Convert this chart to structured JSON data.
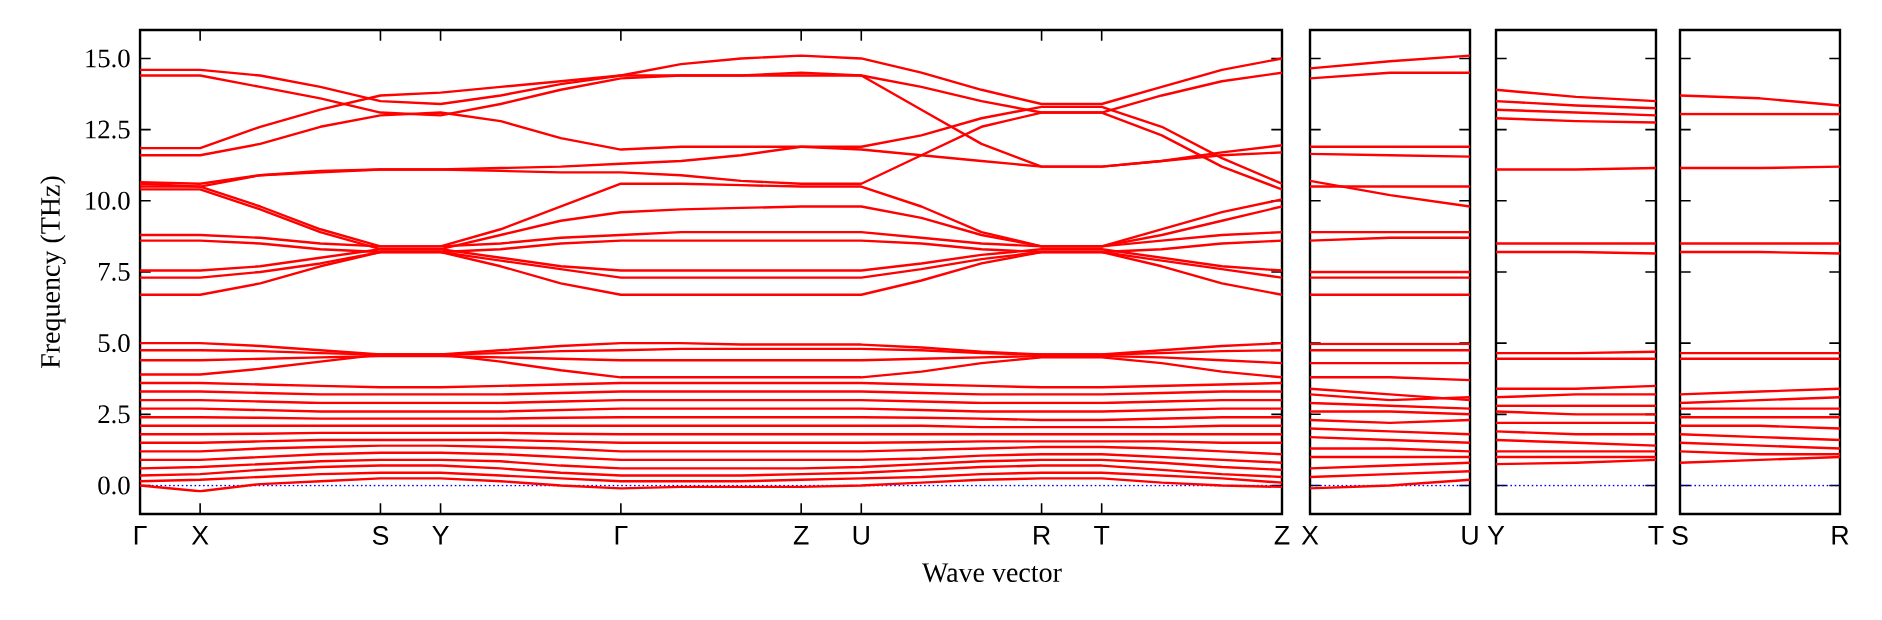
{
  "chart_data": [
    {
      "type": "line",
      "xlabel": "Wave vector",
      "ylabel": "Frequency (THz)",
      "color": "#ff0000",
      "categories": [
        "Γ",
        "X",
        null,
        null,
        "S",
        "Y",
        null,
        null,
        "Γ",
        null,
        null,
        "Z",
        "U",
        null,
        null,
        "R",
        "T",
        null,
        null,
        "Z"
      ],
      "ylim": [
        -1,
        16
      ],
      "yticks": [
        {
          "value": 0,
          "label": "0.0"
        },
        {
          "value": 2.5,
          "label": "2.5"
        },
        {
          "value": 5,
          "label": "5.0"
        },
        {
          "value": 7.5,
          "label": "7.5"
        },
        {
          "value": 10,
          "label": "10.0"
        },
        {
          "value": 12.5,
          "label": "12.5"
        },
        {
          "value": 15,
          "label": "15.0"
        }
      ],
      "ref_lines": [
        {
          "axis": "y",
          "value": 0,
          "color": "#0000ff",
          "line_style": "dotted"
        }
      ],
      "series": [
        {
          "values": [
            14.6,
            14.6,
            14.4,
            14.0,
            13.5,
            13.4,
            13.7,
            14.1,
            14.4,
            14.8,
            15.0,
            15.1,
            15.0,
            14.5,
            13.9,
            13.4,
            13.4,
            14.0,
            14.6,
            15.0
          ]
        },
        {
          "values": [
            14.4,
            14.4,
            14.0,
            13.6,
            13.1,
            13.0,
            13.4,
            13.9,
            14.3,
            14.4,
            14.4,
            14.5,
            14.4,
            14.0,
            13.5,
            13.1,
            13.1,
            13.7,
            14.2,
            14.5
          ]
        },
        {
          "values": [
            11.85,
            11.85,
            12.6,
            13.2,
            13.7,
            13.8,
            14.0,
            14.2,
            14.4,
            14.4,
            14.4,
            14.4,
            14.4,
            13.2,
            12.0,
            11.2,
            11.2,
            11.4,
            11.7,
            11.95
          ]
        },
        {
          "values": [
            11.6,
            11.6,
            12.0,
            12.6,
            13.0,
            13.1,
            12.8,
            12.2,
            11.8,
            11.9,
            11.9,
            11.9,
            11.8,
            11.6,
            11.4,
            11.2,
            11.2,
            11.4,
            11.6,
            11.7
          ]
        },
        {
          "values": [
            10.65,
            10.6,
            10.9,
            11.05,
            11.1,
            11.1,
            11.15,
            11.2,
            11.3,
            11.4,
            11.6,
            11.9,
            11.9,
            12.3,
            12.9,
            13.3,
            13.3,
            12.6,
            11.5,
            10.6
          ]
        },
        {
          "values": [
            10.5,
            10.5,
            10.9,
            11.0,
            11.1,
            11.1,
            11.05,
            11.0,
            11.0,
            10.9,
            10.7,
            10.6,
            10.6,
            11.6,
            12.6,
            13.1,
            13.1,
            12.3,
            11.2,
            10.4
          ]
        },
        {
          "values": [
            10.6,
            10.5,
            9.8,
            9.0,
            8.4,
            8.4,
            9.0,
            9.8,
            10.6,
            10.6,
            10.55,
            10.5,
            10.5,
            9.8,
            8.9,
            8.4,
            8.4,
            8.8,
            9.3,
            9.8
          ]
        },
        {
          "values": [
            10.4,
            10.4,
            9.7,
            8.9,
            8.3,
            8.3,
            8.8,
            9.3,
            9.6,
            9.7,
            9.75,
            9.8,
            9.8,
            9.4,
            8.8,
            8.4,
            8.4,
            9.0,
            9.6,
            10.05
          ]
        },
        {
          "values": [
            8.8,
            8.8,
            8.7,
            8.5,
            8.4,
            8.4,
            8.5,
            8.7,
            8.8,
            8.9,
            8.9,
            8.9,
            8.9,
            8.7,
            8.5,
            8.4,
            8.4,
            8.6,
            8.8,
            8.9
          ]
        },
        {
          "values": [
            8.6,
            8.6,
            8.5,
            8.3,
            8.2,
            8.2,
            8.3,
            8.5,
            8.6,
            8.6,
            8.6,
            8.6,
            8.6,
            8.5,
            8.3,
            8.2,
            8.2,
            8.3,
            8.5,
            8.6
          ]
        },
        {
          "values": [
            7.55,
            7.55,
            7.7,
            8.0,
            8.3,
            8.3,
            8.0,
            7.7,
            7.55,
            7.55,
            7.55,
            7.55,
            7.55,
            7.8,
            8.1,
            8.3,
            8.3,
            8.0,
            7.7,
            7.55
          ]
        },
        {
          "values": [
            7.3,
            7.3,
            7.5,
            7.8,
            8.2,
            8.2,
            7.9,
            7.6,
            7.3,
            7.3,
            7.3,
            7.3,
            7.3,
            7.6,
            7.95,
            8.2,
            8.2,
            7.9,
            7.6,
            7.3
          ]
        },
        {
          "values": [
            6.7,
            6.7,
            7.1,
            7.7,
            8.2,
            8.2,
            7.7,
            7.1,
            6.7,
            6.7,
            6.7,
            6.7,
            6.7,
            7.2,
            7.8,
            8.2,
            8.2,
            7.7,
            7.1,
            6.7
          ]
        },
        {
          "values": [
            5.0,
            5.0,
            4.9,
            4.75,
            4.6,
            4.6,
            4.75,
            4.9,
            5.0,
            5.0,
            4.95,
            4.95,
            4.95,
            4.85,
            4.7,
            4.6,
            4.6,
            4.75,
            4.9,
            5.0
          ]
        },
        {
          "values": [
            4.75,
            4.75,
            4.72,
            4.65,
            4.6,
            4.6,
            4.65,
            4.72,
            4.75,
            4.8,
            4.8,
            4.8,
            4.8,
            4.75,
            4.65,
            4.6,
            4.6,
            4.65,
            4.72,
            4.75
          ]
        },
        {
          "values": [
            4.4,
            4.4,
            4.45,
            4.5,
            4.55,
            4.55,
            4.5,
            4.45,
            4.4,
            4.4,
            4.4,
            4.4,
            4.4,
            4.45,
            4.5,
            4.55,
            4.55,
            4.5,
            4.4,
            4.3
          ]
        },
        {
          "values": [
            3.9,
            3.9,
            4.1,
            4.35,
            4.6,
            4.6,
            4.35,
            4.05,
            3.8,
            3.8,
            3.8,
            3.8,
            3.8,
            4.0,
            4.3,
            4.5,
            4.5,
            4.3,
            4.0,
            3.8
          ]
        },
        {
          "values": [
            3.6,
            3.6,
            3.55,
            3.5,
            3.45,
            3.45,
            3.5,
            3.55,
            3.6,
            3.6,
            3.6,
            3.6,
            3.6,
            3.55,
            3.5,
            3.45,
            3.45,
            3.5,
            3.55,
            3.6
          ]
        },
        {
          "values": [
            3.3,
            3.3,
            3.25,
            3.2,
            3.2,
            3.2,
            3.2,
            3.25,
            3.3,
            3.3,
            3.3,
            3.3,
            3.3,
            3.25,
            3.2,
            3.2,
            3.2,
            3.25,
            3.3,
            3.3
          ]
        },
        {
          "values": [
            3.0,
            3.0,
            2.95,
            2.9,
            2.9,
            2.9,
            2.9,
            2.95,
            3.0,
            3.0,
            3.0,
            3.0,
            3.0,
            2.95,
            2.9,
            2.9,
            2.9,
            2.95,
            3.0,
            3.0
          ]
        },
        {
          "values": [
            2.7,
            2.7,
            2.65,
            2.6,
            2.6,
            2.6,
            2.6,
            2.65,
            2.7,
            2.7,
            2.7,
            2.7,
            2.7,
            2.65,
            2.6,
            2.6,
            2.6,
            2.65,
            2.7,
            2.7
          ]
        },
        {
          "values": [
            2.4,
            2.4,
            2.38,
            2.35,
            2.35,
            2.35,
            2.35,
            2.38,
            2.4,
            2.4,
            2.4,
            2.4,
            2.4,
            2.38,
            2.35,
            2.3,
            2.3,
            2.35,
            2.4,
            2.4
          ]
        },
        {
          "values": [
            2.1,
            2.1,
            2.1,
            2.1,
            2.1,
            2.1,
            2.1,
            2.1,
            2.1,
            2.1,
            2.1,
            2.1,
            2.1,
            2.1,
            2.05,
            2.05,
            2.05,
            2.05,
            2.1,
            2.1
          ]
        },
        {
          "values": [
            1.8,
            1.8,
            1.82,
            1.85,
            1.85,
            1.85,
            1.85,
            1.82,
            1.8,
            1.8,
            1.8,
            1.8,
            1.8,
            1.8,
            1.8,
            1.8,
            1.8,
            1.8,
            1.8,
            1.8
          ]
        },
        {
          "values": [
            1.5,
            1.5,
            1.55,
            1.6,
            1.6,
            1.6,
            1.6,
            1.55,
            1.5,
            1.5,
            1.5,
            1.5,
            1.5,
            1.52,
            1.55,
            1.55,
            1.55,
            1.55,
            1.5,
            1.5
          ]
        },
        {
          "values": [
            1.2,
            1.2,
            1.3,
            1.35,
            1.4,
            1.4,
            1.35,
            1.3,
            1.2,
            1.2,
            1.2,
            1.2,
            1.2,
            1.25,
            1.3,
            1.35,
            1.35,
            1.3,
            1.2,
            1.1
          ]
        },
        {
          "values": [
            0.9,
            0.9,
            1.0,
            1.1,
            1.15,
            1.15,
            1.1,
            1.0,
            0.9,
            0.9,
            0.9,
            0.9,
            0.9,
            0.95,
            1.05,
            1.1,
            1.1,
            1.0,
            0.9,
            0.8
          ]
        },
        {
          "values": [
            0.6,
            0.65,
            0.75,
            0.85,
            0.9,
            0.9,
            0.85,
            0.7,
            0.6,
            0.6,
            0.6,
            0.6,
            0.65,
            0.75,
            0.85,
            0.9,
            0.9,
            0.8,
            0.65,
            0.55
          ]
        },
        {
          "values": [
            0.35,
            0.4,
            0.55,
            0.65,
            0.7,
            0.7,
            0.6,
            0.45,
            0.35,
            0.35,
            0.35,
            0.4,
            0.45,
            0.55,
            0.65,
            0.7,
            0.7,
            0.55,
            0.4,
            0.3
          ]
        },
        {
          "values": [
            0.15,
            0.2,
            0.3,
            0.4,
            0.45,
            0.45,
            0.35,
            0.25,
            0.15,
            0.15,
            0.15,
            0.2,
            0.25,
            0.3,
            0.4,
            0.45,
            0.45,
            0.35,
            0.25,
            0.1
          ]
        },
        {
          "values": [
            0.0,
            -0.2,
            0.05,
            0.15,
            0.25,
            0.25,
            0.15,
            0.0,
            -0.1,
            -0.05,
            -0.05,
            -0.05,
            0.0,
            0.1,
            0.2,
            0.25,
            0.25,
            0.1,
            0.0,
            -0.05
          ]
        }
      ]
    },
    {
      "type": "line",
      "color": "#ff0000",
      "categories": [
        "X",
        null,
        "U"
      ],
      "ylim": [
        -1,
        16
      ],
      "yticks": [
        0,
        2.5,
        5,
        7.5,
        10,
        12.5,
        15
      ],
      "tick_labels": "x",
      "ref_lines": [
        {
          "axis": "y",
          "value": 0,
          "color": "#0000ff",
          "line_style": "dotted"
        }
      ],
      "series": [
        {
          "values": [
            14.65,
            14.9,
            15.1
          ]
        },
        {
          "values": [
            14.3,
            14.5,
            14.5
          ]
        },
        {
          "values": [
            11.9,
            11.9,
            11.9
          ]
        },
        {
          "values": [
            11.65,
            11.6,
            11.55
          ]
        },
        {
          "values": [
            10.7,
            10.2,
            9.8
          ]
        },
        {
          "values": [
            10.5,
            10.5,
            10.5
          ]
        },
        {
          "values": [
            8.9,
            8.9,
            8.9
          ]
        },
        {
          "values": [
            8.6,
            8.7,
            8.7
          ]
        },
        {
          "values": [
            7.5,
            7.5,
            7.5
          ]
        },
        {
          "values": [
            7.3,
            7.3,
            7.3
          ]
        },
        {
          "values": [
            6.7,
            6.7,
            6.7
          ]
        },
        {
          "values": [
            4.97,
            4.97,
            4.97
          ]
        },
        {
          "values": [
            4.75,
            4.75,
            4.75
          ]
        },
        {
          "values": [
            4.3,
            4.3,
            4.3
          ]
        },
        {
          "values": [
            3.8,
            3.8,
            3.7
          ]
        },
        {
          "values": [
            3.4,
            3.2,
            3.0
          ]
        },
        {
          "values": [
            3.2,
            3.0,
            3.1
          ]
        },
        {
          "values": [
            2.9,
            2.8,
            2.7
          ]
        },
        {
          "values": [
            2.6,
            2.6,
            2.5
          ]
        },
        {
          "values": [
            2.3,
            2.2,
            2.3
          ]
        },
        {
          "values": [
            2.0,
            1.9,
            1.8
          ]
        },
        {
          "values": [
            1.7,
            1.6,
            1.5
          ]
        },
        {
          "values": [
            1.3,
            1.3,
            1.2
          ]
        },
        {
          "values": [
            1.0,
            1.0,
            1.0
          ]
        },
        {
          "values": [
            0.6,
            0.7,
            0.8
          ]
        },
        {
          "values": [
            0.3,
            0.4,
            0.5
          ]
        },
        {
          "values": [
            -0.1,
            0.0,
            0.2
          ]
        }
      ]
    },
    {
      "type": "line",
      "color": "#ff0000",
      "categories": [
        "Y",
        null,
        "T"
      ],
      "ylim": [
        -1,
        16
      ],
      "yticks": [
        0,
        2.5,
        5,
        7.5,
        10,
        12.5,
        15
      ],
      "tick_labels": "x",
      "ref_lines": [
        {
          "axis": "y",
          "value": 0,
          "color": "#0000ff",
          "line_style": "dotted"
        }
      ],
      "series": [
        {
          "values": [
            13.9,
            13.65,
            13.5
          ]
        },
        {
          "values": [
            13.5,
            13.35,
            13.25
          ]
        },
        {
          "values": [
            13.2,
            13.1,
            13.0
          ]
        },
        {
          "values": [
            12.9,
            12.8,
            12.75
          ]
        },
        {
          "values": [
            11.1,
            11.1,
            11.15
          ]
        },
        {
          "values": [
            8.5,
            8.5,
            8.5
          ]
        },
        {
          "values": [
            8.2,
            8.2,
            8.15
          ]
        },
        {
          "values": [
            4.65,
            4.65,
            4.7
          ]
        },
        {
          "values": [
            4.45,
            4.45,
            4.45
          ]
        },
        {
          "values": [
            3.4,
            3.4,
            3.5
          ]
        },
        {
          "values": [
            3.1,
            3.2,
            3.2
          ]
        },
        {
          "values": [
            2.8,
            2.8,
            2.8
          ]
        },
        {
          "values": [
            2.6,
            2.5,
            2.5
          ]
        },
        {
          "values": [
            2.2,
            2.2,
            2.2
          ]
        },
        {
          "values": [
            1.9,
            1.8,
            1.8
          ]
        },
        {
          "values": [
            1.6,
            1.5,
            1.4
          ]
        },
        {
          "values": [
            1.2,
            1.2,
            1.2
          ]
        },
        {
          "values": [
            1.0,
            1.0,
            1.0
          ]
        },
        {
          "values": [
            0.75,
            0.8,
            0.9
          ]
        }
      ]
    },
    {
      "type": "line",
      "color": "#ff0000",
      "categories": [
        "S",
        null,
        "R"
      ],
      "ylim": [
        -1,
        16
      ],
      "yticks": [
        0,
        2.5,
        5,
        7.5,
        10,
        12.5,
        15
      ],
      "tick_labels": "x",
      "ref_lines": [
        {
          "axis": "y",
          "value": 0,
          "color": "#0000ff",
          "line_style": "dotted"
        }
      ],
      "series": [
        {
          "values": [
            13.7,
            13.6,
            13.35
          ]
        },
        {
          "values": [
            13.05,
            13.05,
            13.05
          ]
        },
        {
          "values": [
            11.15,
            11.15,
            11.2
          ]
        },
        {
          "values": [
            8.5,
            8.5,
            8.5
          ]
        },
        {
          "values": [
            8.2,
            8.2,
            8.15
          ]
        },
        {
          "values": [
            4.65,
            4.65,
            4.65
          ]
        },
        {
          "values": [
            4.45,
            4.45,
            4.45
          ]
        },
        {
          "values": [
            3.2,
            3.3,
            3.4
          ]
        },
        {
          "values": [
            2.9,
            3.0,
            3.1
          ]
        },
        {
          "values": [
            2.7,
            2.7,
            2.7
          ]
        },
        {
          "values": [
            2.4,
            2.4,
            2.4
          ]
        },
        {
          "values": [
            2.1,
            2.1,
            2.0
          ]
        },
        {
          "values": [
            1.8,
            1.7,
            1.6
          ]
        },
        {
          "values": [
            1.5,
            1.4,
            1.3
          ]
        },
        {
          "values": [
            1.2,
            1.1,
            1.1
          ]
        },
        {
          "values": [
            0.8,
            0.9,
            1.0
          ]
        }
      ]
    }
  ]
}
